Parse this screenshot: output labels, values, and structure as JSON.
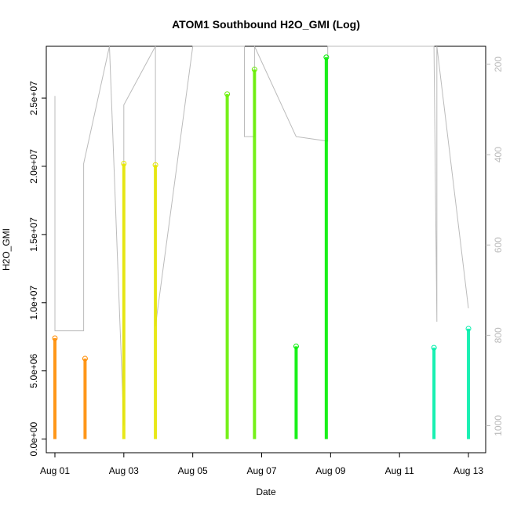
{
  "chart_data": {
    "type": "scatter",
    "title": "ATOM1 Southbound H2O_GMI (Log)",
    "xlabel": "Date",
    "ylabel": "H2O_GMI",
    "x_ticks": [
      "Aug 01",
      "Aug 03",
      "Aug 05",
      "Aug 07",
      "Aug 09",
      "Aug 11",
      "Aug 13"
    ],
    "xlim": [
      "Jul 31 18:00",
      "Aug 13 12:00"
    ],
    "ylim": [
      -1000000,
      28800000
    ],
    "y_ticks": [
      0,
      5000000,
      10000000,
      15000000,
      20000000,
      25000000
    ],
    "y_tick_labels": [
      "0.0e+00",
      "5.0e+06",
      "1.0e+07",
      "1.5e+07",
      "2.0e+07",
      "2.5e+07"
    ],
    "y2_ticks": [
      200,
      400,
      600,
      800,
      1000
    ],
    "y2_tick_labels": [
      "200",
      "400",
      "600",
      "800",
      "1000"
    ],
    "y2_lim": [
      1060,
      160
    ],
    "y2_reversed": true,
    "grid": false,
    "series": [
      {
        "color": "#FF8C00",
        "x": [
          "Aug 01 00:00",
          "Aug 01 21:00"
        ],
        "y": [
          7400000,
          5900000
        ]
      },
      {
        "color": "#E6E600",
        "x": [
          "Aug 03 00:00",
          "Aug 03 22:00"
        ],
        "y": [
          20200000,
          20100000
        ]
      },
      {
        "color": "#66EE00",
        "x": [
          "Aug 06 00:00",
          "Aug 06 19:00"
        ],
        "y": [
          25300000,
          27100000
        ]
      },
      {
        "color": "#00EE00",
        "x": [
          "Aug 08 00:00",
          "Aug 08 21:00"
        ],
        "y": [
          6800000,
          28000000
        ]
      },
      {
        "color": "#00EEAA",
        "x": [
          "Aug 12 00:00",
          "Aug 13 00:00"
        ],
        "y": [
          6700000,
          8100000
        ]
      }
    ],
    "secondary_line": {
      "color": "#BBBBBB",
      "x": [
        "Aug 01 00:00",
        "Aug 01 00:00",
        "Aug 01 20:00",
        "Aug 01 20:00",
        "Aug 02 14:00",
        "Aug 03 00:00",
        "Aug 03 00:00",
        "Aug 03 22:00",
        "Aug 03 22:00",
        "Aug 05 00:00",
        "Aug 06 00:00",
        "Aug 06 12:00",
        "Aug 06 12:00",
        "Aug 06 19:00",
        "Aug 06 19:00",
        "Aug 08 00:00",
        "Aug 08 22:00",
        "Aug 08 22:00",
        "Aug 12 00:00",
        "Aug 12 02:00",
        "Aug 12 02:00",
        "Aug 13 00:00"
      ],
      "y": [
        270,
        790,
        790,
        420,
        160,
        1000,
        290,
        160,
        780,
        160,
        160,
        160,
        360,
        360,
        160,
        360,
        370,
        160,
        160,
        770,
        160,
        740
      ]
    }
  }
}
